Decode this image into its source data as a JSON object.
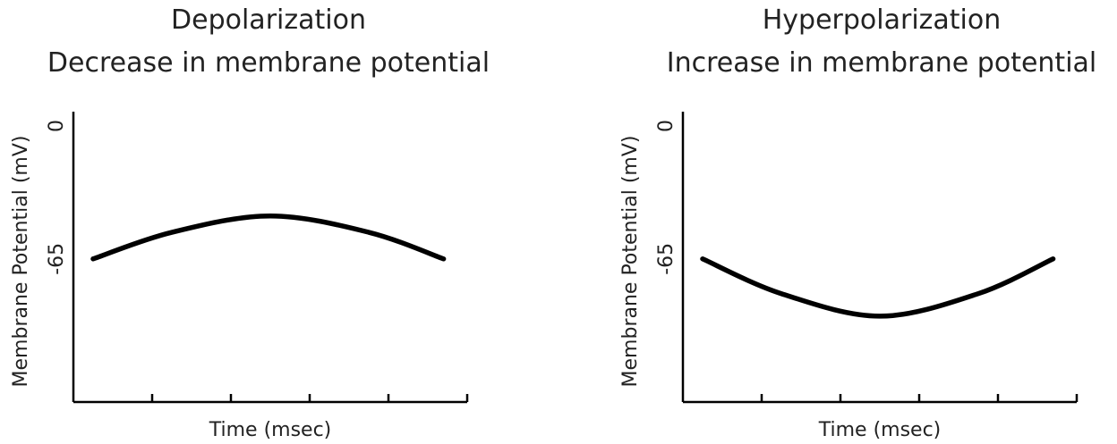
{
  "chart_data": [
    {
      "type": "line",
      "title": "Depolarization",
      "subtitle": "Decrease in membrane potential",
      "xlabel": "Time (msec)",
      "ylabel": "Membrane Potential (mV)",
      "y_tick_labels": [
        "0",
        "-65"
      ],
      "y_ticks": [
        0,
        -65
      ],
      "ylim": [
        -135,
        7
      ],
      "xlim": [
        0,
        5
      ],
      "grid": false,
      "x_tick_count": 5,
      "series": [
        {
          "x": [
            0.25,
            1.25,
            2.5,
            3.75,
            4.7
          ],
          "y": [
            -65,
            -52,
            -44,
            -52,
            -65
          ]
        }
      ],
      "line_color": "#000000"
    },
    {
      "type": "line",
      "title": "Hyperpolarization",
      "subtitle": "Increase in membrane potential",
      "xlabel": "Time (msec)",
      "ylabel": "Membrane Potential (mV)",
      "y_tick_labels": [
        "0",
        "-65"
      ],
      "y_ticks": [
        0,
        -65
      ],
      "ylim": [
        -135,
        7
      ],
      "xlim": [
        0,
        5
      ],
      "grid": false,
      "x_tick_count": 5,
      "series": [
        {
          "x": [
            0.25,
            1.25,
            2.5,
            3.75,
            4.7
          ],
          "y": [
            -65,
            -82,
            -93,
            -82,
            -65
          ]
        }
      ],
      "line_color": "#000000"
    }
  ]
}
